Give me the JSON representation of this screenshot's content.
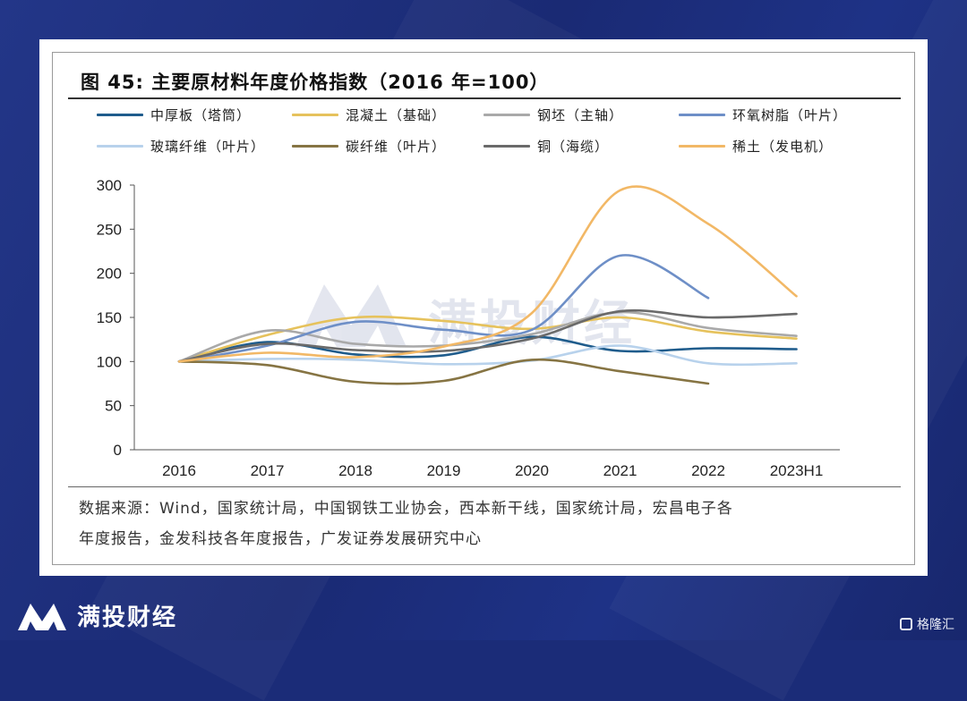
{
  "page": {
    "brand_name": "满投财经",
    "watermark_text": "满投财经",
    "corner_badge_text": "格隆汇"
  },
  "figure": {
    "title": "图 45:  主要原材料年度价格指数（2016 年=100）",
    "source_line1": "数据来源：Wind，国家统计局，中国钢铁工业协会，西本新干线，国家统计局，宏昌电子各",
    "source_line2": "年度报告，金发科技各年度报告，广发证券发展研究中心"
  },
  "chart_data": {
    "type": "line",
    "title": "主要原材料年度价格指数（2016 年=100）",
    "categories": [
      "2016",
      "2017",
      "2018",
      "2019",
      "2020",
      "2021",
      "2022",
      "2023H1"
    ],
    "ylim": [
      0,
      300
    ],
    "yticks": [
      0,
      50,
      100,
      150,
      200,
      250,
      300
    ],
    "grid": false,
    "legend_position": "top",
    "series": [
      {
        "name": "中厚板（塔筒）",
        "color": "#1f5c8c",
        "values": [
          100,
          122,
          108,
          107,
          128,
          112,
          115,
          114
        ]
      },
      {
        "name": "混凝土（基础）",
        "color": "#e6c25c",
        "values": [
          100,
          130,
          150,
          146,
          137,
          150,
          134,
          126
        ]
      },
      {
        "name": "钢坯（主轴）",
        "color": "#a9a9a9",
        "values": [
          100,
          135,
          120,
          118,
          131,
          156,
          138,
          129
        ]
      },
      {
        "name": "环氧树脂（叶片）",
        "color": "#6e8fc7",
        "values": [
          100,
          118,
          145,
          136,
          136,
          220,
          172,
          null
        ]
      },
      {
        "name": "玻璃纤维（叶片）",
        "color": "#b8d2ec",
        "values": [
          100,
          103,
          102,
          97,
          101,
          118,
          98,
          98
        ]
      },
      {
        "name": "碳纤维（叶片）",
        "color": "#867443",
        "values": [
          100,
          96,
          77,
          78,
          102,
          89,
          75,
          null
        ]
      },
      {
        "name": "铜（海缆）",
        "color": "#6a6a6a",
        "values": [
          100,
          120,
          113,
          112,
          126,
          157,
          150,
          154
        ]
      },
      {
        "name": "稀土（发电机）",
        "color": "#f2b866",
        "values": [
          100,
          110,
          105,
          117,
          155,
          294,
          256,
          174
        ]
      }
    ]
  }
}
